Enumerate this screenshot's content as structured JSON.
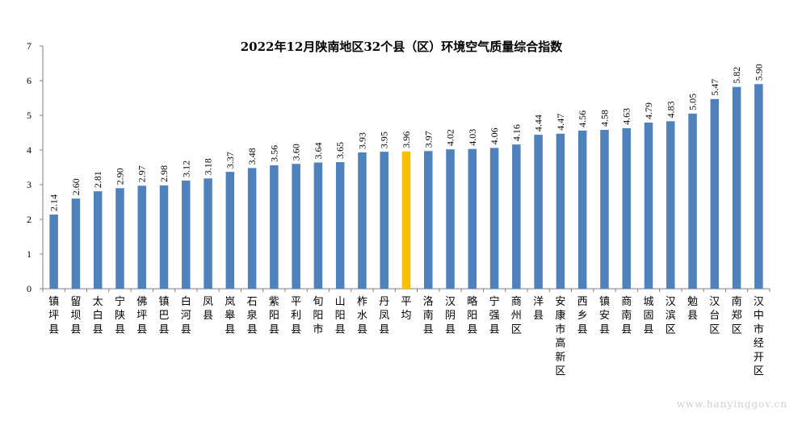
{
  "chart_data": {
    "type": "bar",
    "title": "2022年12月陕南地区32个县（区）环境空气质量综合指数",
    "categories": [
      "镇坪县",
      "留坝县",
      "太白县",
      "宁陕县",
      "佛坪县",
      "镇巴县",
      "白河县",
      "凤县",
      "岚皋县",
      "石泉县",
      "紫阳县",
      "平利县",
      "旬阳市",
      "山阳县",
      "柞水县",
      "丹凤县",
      "平均",
      "洛南县",
      "汉阴县",
      "略阳县",
      "宁强县",
      "商州区",
      "洋县",
      "安康市高新区",
      "西乡县",
      "镇安县",
      "商南县",
      "城固县",
      "汉滨区",
      "勉县",
      "汉台区",
      "南郑区",
      "汉中市经开区"
    ],
    "values": [
      2.14,
      2.6,
      2.81,
      2.9,
      2.97,
      2.98,
      3.12,
      3.18,
      3.37,
      3.48,
      3.56,
      3.6,
      3.64,
      3.65,
      3.93,
      3.95,
      3.96,
      3.97,
      4.02,
      4.03,
      4.06,
      4.16,
      4.44,
      4.47,
      4.56,
      4.58,
      4.63,
      4.79,
      4.83,
      5.05,
      5.47,
      5.82,
      5.9
    ],
    "value_labels": [
      "2.14",
      "2.60",
      "2.81",
      "2.90",
      "2.97",
      "2.98",
      "3.12",
      "3.18",
      "3.37",
      "3.48",
      "3.56",
      "3.60",
      "3.64",
      "3.65",
      "3.93",
      "3.95",
      "3.96",
      "3.97",
      "4.02",
      "4.03",
      "4.06",
      "4.16",
      "4.44",
      "4.47",
      "4.56",
      "4.58",
      "4.63",
      "4.79",
      "4.83",
      "5.05",
      "5.47",
      "5.82",
      "5.90"
    ],
    "highlight_category": "平均",
    "ylim": [
      0,
      7
    ],
    "yticks": [
      "0",
      "1",
      "2",
      "3",
      "4",
      "5",
      "6",
      "7"
    ],
    "grid": false,
    "colors": {
      "bar": "#4f81bd",
      "highlight": "#f5c000",
      "axis": "#7f7f7f",
      "text": "#000000"
    }
  },
  "watermark": "www.hanyinggov.cn"
}
